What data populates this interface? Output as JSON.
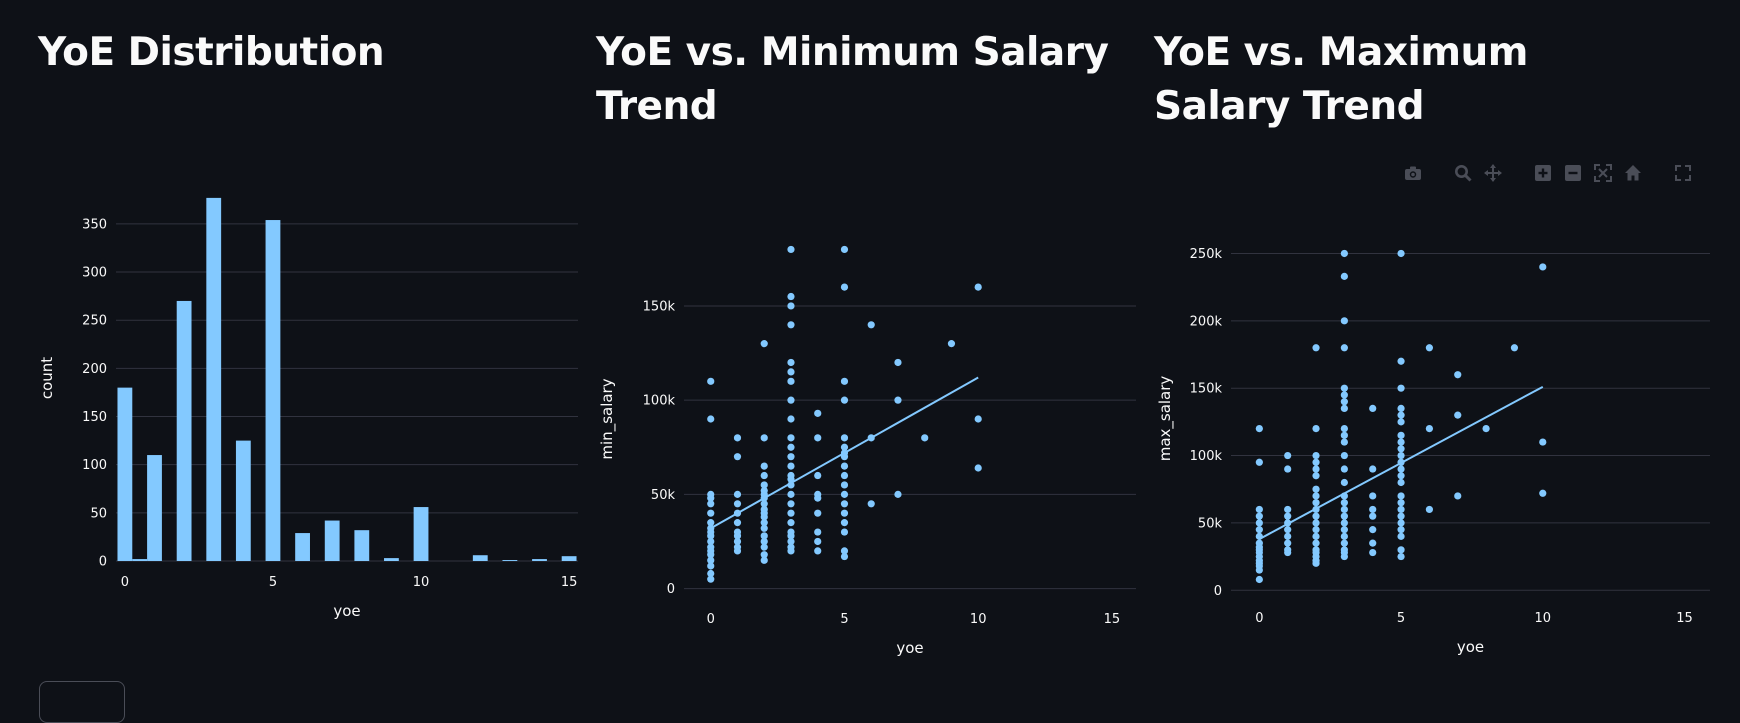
{
  "panels": [
    {
      "title": "YoE Distribution"
    },
    {
      "title": "YoE vs. Minimum Salary Trend"
    },
    {
      "title": "YoE vs. Maximum Salary Trend"
    }
  ],
  "colors": {
    "background": "#0e1117",
    "marker": "#83c9ff",
    "grid": "#31333f",
    "text": "#fafafa",
    "modebar": "#4a4d57"
  },
  "modebar": {
    "icons": [
      "camera-icon",
      "zoom-icon",
      "pan-icon",
      "zoom-in-icon",
      "zoom-out-icon",
      "autoscale-icon",
      "home-icon",
      "fullscreen-icon"
    ]
  },
  "chart_data": [
    {
      "type": "bar",
      "title": "YoE Distribution",
      "xlabel": "yoe",
      "ylabel": "count",
      "xlim": [
        -0.3,
        15.3
      ],
      "ylim": [
        0,
        380
      ],
      "xticks": [
        0,
        5,
        10,
        15
      ],
      "yticks": [
        0,
        50,
        100,
        150,
        200,
        250,
        300,
        350
      ],
      "ytick_labels": [
        "0",
        "50",
        "100",
        "150",
        "200",
        "250",
        "300",
        "350"
      ],
      "bar_width": 0.5,
      "grid": true,
      "x": [
        0,
        0.5,
        1,
        2,
        3,
        4,
        5,
        6,
        7,
        8,
        9,
        10,
        12,
        13,
        14,
        15
      ],
      "values": [
        180,
        2,
        110,
        270,
        377,
        125,
        354,
        29,
        42,
        32,
        3,
        56,
        6,
        1,
        2,
        5
      ]
    },
    {
      "type": "scatter",
      "title": "YoE vs. Minimum Salary Trend",
      "xlabel": "yoe",
      "ylabel": "min_salary",
      "xlim": [
        -1,
        15.9
      ],
      "ylim": [
        -5000,
        185000
      ],
      "xticks": [
        0,
        5,
        10,
        15
      ],
      "yticks": [
        0,
        50000,
        100000,
        150000
      ],
      "ytick_labels": [
        "0",
        "50k",
        "100k",
        "150k"
      ],
      "grid": true,
      "trendline": {
        "x": [
          0,
          10
        ],
        "y": [
          32000,
          112000
        ]
      },
      "points": [
        [
          0,
          5000
        ],
        [
          0,
          8000
        ],
        [
          0,
          12000
        ],
        [
          0,
          15000
        ],
        [
          0,
          18000
        ],
        [
          0,
          20000
        ],
        [
          0,
          22000
        ],
        [
          0,
          25000
        ],
        [
          0,
          28000
        ],
        [
          0,
          30000
        ],
        [
          0,
          32000
        ],
        [
          0,
          35000
        ],
        [
          0,
          40000
        ],
        [
          0,
          45000
        ],
        [
          0,
          48000
        ],
        [
          0,
          50000
        ],
        [
          0,
          90000
        ],
        [
          0,
          110000
        ],
        [
          1,
          20000
        ],
        [
          1,
          22000
        ],
        [
          1,
          25000
        ],
        [
          1,
          28000
        ],
        [
          1,
          30000
        ],
        [
          1,
          35000
        ],
        [
          1,
          40000
        ],
        [
          1,
          45000
        ],
        [
          1,
          50000
        ],
        [
          1,
          70000
        ],
        [
          1,
          80000
        ],
        [
          2,
          15000
        ],
        [
          2,
          18000
        ],
        [
          2,
          22000
        ],
        [
          2,
          25000
        ],
        [
          2,
          28000
        ],
        [
          2,
          32000
        ],
        [
          2,
          35000
        ],
        [
          2,
          38000
        ],
        [
          2,
          40000
        ],
        [
          2,
          42000
        ],
        [
          2,
          45000
        ],
        [
          2,
          48000
        ],
        [
          2,
          50000
        ],
        [
          2,
          52000
        ],
        [
          2,
          55000
        ],
        [
          2,
          60000
        ],
        [
          2,
          65000
        ],
        [
          2,
          80000
        ],
        [
          2,
          130000
        ],
        [
          3,
          20000
        ],
        [
          3,
          22000
        ],
        [
          3,
          25000
        ],
        [
          3,
          28000
        ],
        [
          3,
          30000
        ],
        [
          3,
          35000
        ],
        [
          3,
          40000
        ],
        [
          3,
          45000
        ],
        [
          3,
          50000
        ],
        [
          3,
          55000
        ],
        [
          3,
          58000
        ],
        [
          3,
          60000
        ],
        [
          3,
          65000
        ],
        [
          3,
          70000
        ],
        [
          3,
          75000
        ],
        [
          3,
          80000
        ],
        [
          3,
          90000
        ],
        [
          3,
          100000
        ],
        [
          3,
          110000
        ],
        [
          3,
          115000
        ],
        [
          3,
          120000
        ],
        [
          3,
          140000
        ],
        [
          3,
          150000
        ],
        [
          3,
          155000
        ],
        [
          3,
          180000
        ],
        [
          4,
          20000
        ],
        [
          4,
          25000
        ],
        [
          4,
          30000
        ],
        [
          4,
          40000
        ],
        [
          4,
          48000
        ],
        [
          4,
          50000
        ],
        [
          4,
          60000
        ],
        [
          4,
          80000
        ],
        [
          4,
          93000
        ],
        [
          5,
          17000
        ],
        [
          5,
          20000
        ],
        [
          5,
          30000
        ],
        [
          5,
          35000
        ],
        [
          5,
          40000
        ],
        [
          5,
          45000
        ],
        [
          5,
          50000
        ],
        [
          5,
          55000
        ],
        [
          5,
          60000
        ],
        [
          5,
          65000
        ],
        [
          5,
          70000
        ],
        [
          5,
          72000
        ],
        [
          5,
          75000
        ],
        [
          5,
          80000
        ],
        [
          5,
          100000
        ],
        [
          5,
          110000
        ],
        [
          5,
          160000
        ],
        [
          5,
          180000
        ],
        [
          6,
          45000
        ],
        [
          6,
          80000
        ],
        [
          6,
          140000
        ],
        [
          7,
          50000
        ],
        [
          7,
          100000
        ],
        [
          7,
          120000
        ],
        [
          8,
          80000
        ],
        [
          9,
          130000
        ],
        [
          10,
          64000
        ],
        [
          10,
          90000
        ],
        [
          10,
          160000
        ]
      ]
    },
    {
      "type": "scatter",
      "title": "YoE vs. Maximum Salary Trend",
      "xlabel": "yoe",
      "ylabel": "max_salary",
      "xlim": [
        -1,
        15.9
      ],
      "ylim": [
        -5000,
        260000
      ],
      "xticks": [
        0,
        5,
        10,
        15
      ],
      "yticks": [
        0,
        50000,
        100000,
        150000,
        200000,
        250000
      ],
      "ytick_labels": [
        "0",
        "50k",
        "100k",
        "150k",
        "200k",
        "250k"
      ],
      "grid": true,
      "trendline": {
        "x": [
          0,
          10
        ],
        "y": [
          38000,
          151000
        ]
      },
      "points": [
        [
          0,
          8000
        ],
        [
          0,
          15000
        ],
        [
          0,
          18000
        ],
        [
          0,
          20000
        ],
        [
          0,
          22000
        ],
        [
          0,
          25000
        ],
        [
          0,
          28000
        ],
        [
          0,
          30000
        ],
        [
          0,
          32000
        ],
        [
          0,
          35000
        ],
        [
          0,
          40000
        ],
        [
          0,
          45000
        ],
        [
          0,
          50000
        ],
        [
          0,
          55000
        ],
        [
          0,
          60000
        ],
        [
          0,
          95000
        ],
        [
          0,
          120000
        ],
        [
          1,
          28000
        ],
        [
          1,
          30000
        ],
        [
          1,
          35000
        ],
        [
          1,
          40000
        ],
        [
          1,
          45000
        ],
        [
          1,
          50000
        ],
        [
          1,
          55000
        ],
        [
          1,
          60000
        ],
        [
          1,
          90000
        ],
        [
          1,
          100000
        ],
        [
          2,
          20000
        ],
        [
          2,
          22000
        ],
        [
          2,
          25000
        ],
        [
          2,
          28000
        ],
        [
          2,
          30000
        ],
        [
          2,
          35000
        ],
        [
          2,
          40000
        ],
        [
          2,
          45000
        ],
        [
          2,
          50000
        ],
        [
          2,
          55000
        ],
        [
          2,
          60000
        ],
        [
          2,
          65000
        ],
        [
          2,
          70000
        ],
        [
          2,
          75000
        ],
        [
          2,
          85000
        ],
        [
          2,
          90000
        ],
        [
          2,
          95000
        ],
        [
          2,
          100000
        ],
        [
          2,
          120000
        ],
        [
          2,
          180000
        ],
        [
          3,
          25000
        ],
        [
          3,
          28000
        ],
        [
          3,
          30000
        ],
        [
          3,
          35000
        ],
        [
          3,
          40000
        ],
        [
          3,
          45000
        ],
        [
          3,
          50000
        ],
        [
          3,
          55000
        ],
        [
          3,
          60000
        ],
        [
          3,
          65000
        ],
        [
          3,
          70000
        ],
        [
          3,
          80000
        ],
        [
          3,
          90000
        ],
        [
          3,
          100000
        ],
        [
          3,
          110000
        ],
        [
          3,
          115000
        ],
        [
          3,
          120000
        ],
        [
          3,
          135000
        ],
        [
          3,
          140000
        ],
        [
          3,
          145000
        ],
        [
          3,
          150000
        ],
        [
          3,
          180000
        ],
        [
          3,
          200000
        ],
        [
          3,
          233000
        ],
        [
          3,
          250000
        ],
        [
          4,
          28000
        ],
        [
          4,
          35000
        ],
        [
          4,
          45000
        ],
        [
          4,
          55000
        ],
        [
          4,
          60000
        ],
        [
          4,
          70000
        ],
        [
          4,
          90000
        ],
        [
          4,
          135000
        ],
        [
          5,
          25000
        ],
        [
          5,
          30000
        ],
        [
          5,
          40000
        ],
        [
          5,
          45000
        ],
        [
          5,
          50000
        ],
        [
          5,
          55000
        ],
        [
          5,
          60000
        ],
        [
          5,
          65000
        ],
        [
          5,
          70000
        ],
        [
          5,
          80000
        ],
        [
          5,
          85000
        ],
        [
          5,
          90000
        ],
        [
          5,
          95000
        ],
        [
          5,
          100000
        ],
        [
          5,
          105000
        ],
        [
          5,
          110000
        ],
        [
          5,
          115000
        ],
        [
          5,
          125000
        ],
        [
          5,
          130000
        ],
        [
          5,
          135000
        ],
        [
          5,
          150000
        ],
        [
          5,
          170000
        ],
        [
          5,
          250000
        ],
        [
          6,
          60000
        ],
        [
          6,
          120000
        ],
        [
          6,
          180000
        ],
        [
          7,
          70000
        ],
        [
          7,
          130000
        ],
        [
          7,
          160000
        ],
        [
          8,
          120000
        ],
        [
          9,
          180000
        ],
        [
          10,
          72000
        ],
        [
          10,
          110000
        ],
        [
          10,
          240000
        ]
      ]
    }
  ]
}
